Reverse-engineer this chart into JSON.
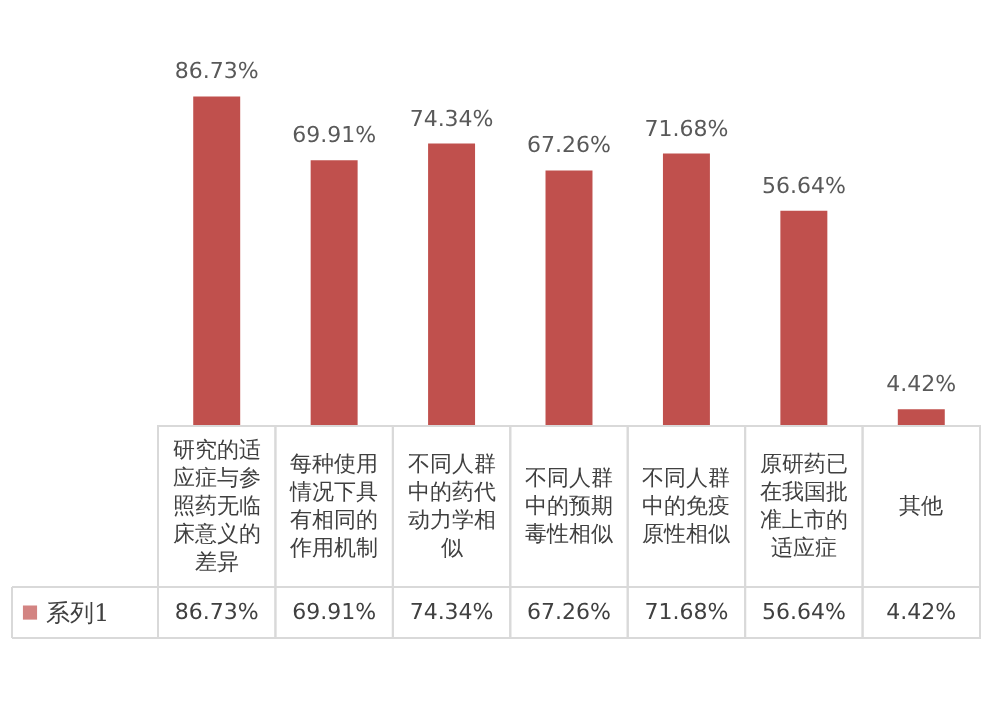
{
  "chart_data": {
    "type": "bar",
    "categories": [
      "研究的适应症与参照药无临床意义的差异",
      "每种使用情况下具有相同的作用机制",
      "不同人群中的药代动力学相似",
      "不同人群中的预期毒性相似",
      "不同人群中的免疫原性相似",
      "原研药已在我国批准上市的适应症",
      "其他"
    ],
    "series": [
      {
        "name": "系列1",
        "color": "#c0504d",
        "values": [
          86.73,
          69.91,
          74.34,
          67.26,
          71.68,
          56.64,
          4.42
        ],
        "value_labels": [
          "86.73%",
          "69.91%",
          "74.34%",
          "67.26%",
          "71.68%",
          "56.64%",
          "4.42%"
        ]
      }
    ]
  }
}
